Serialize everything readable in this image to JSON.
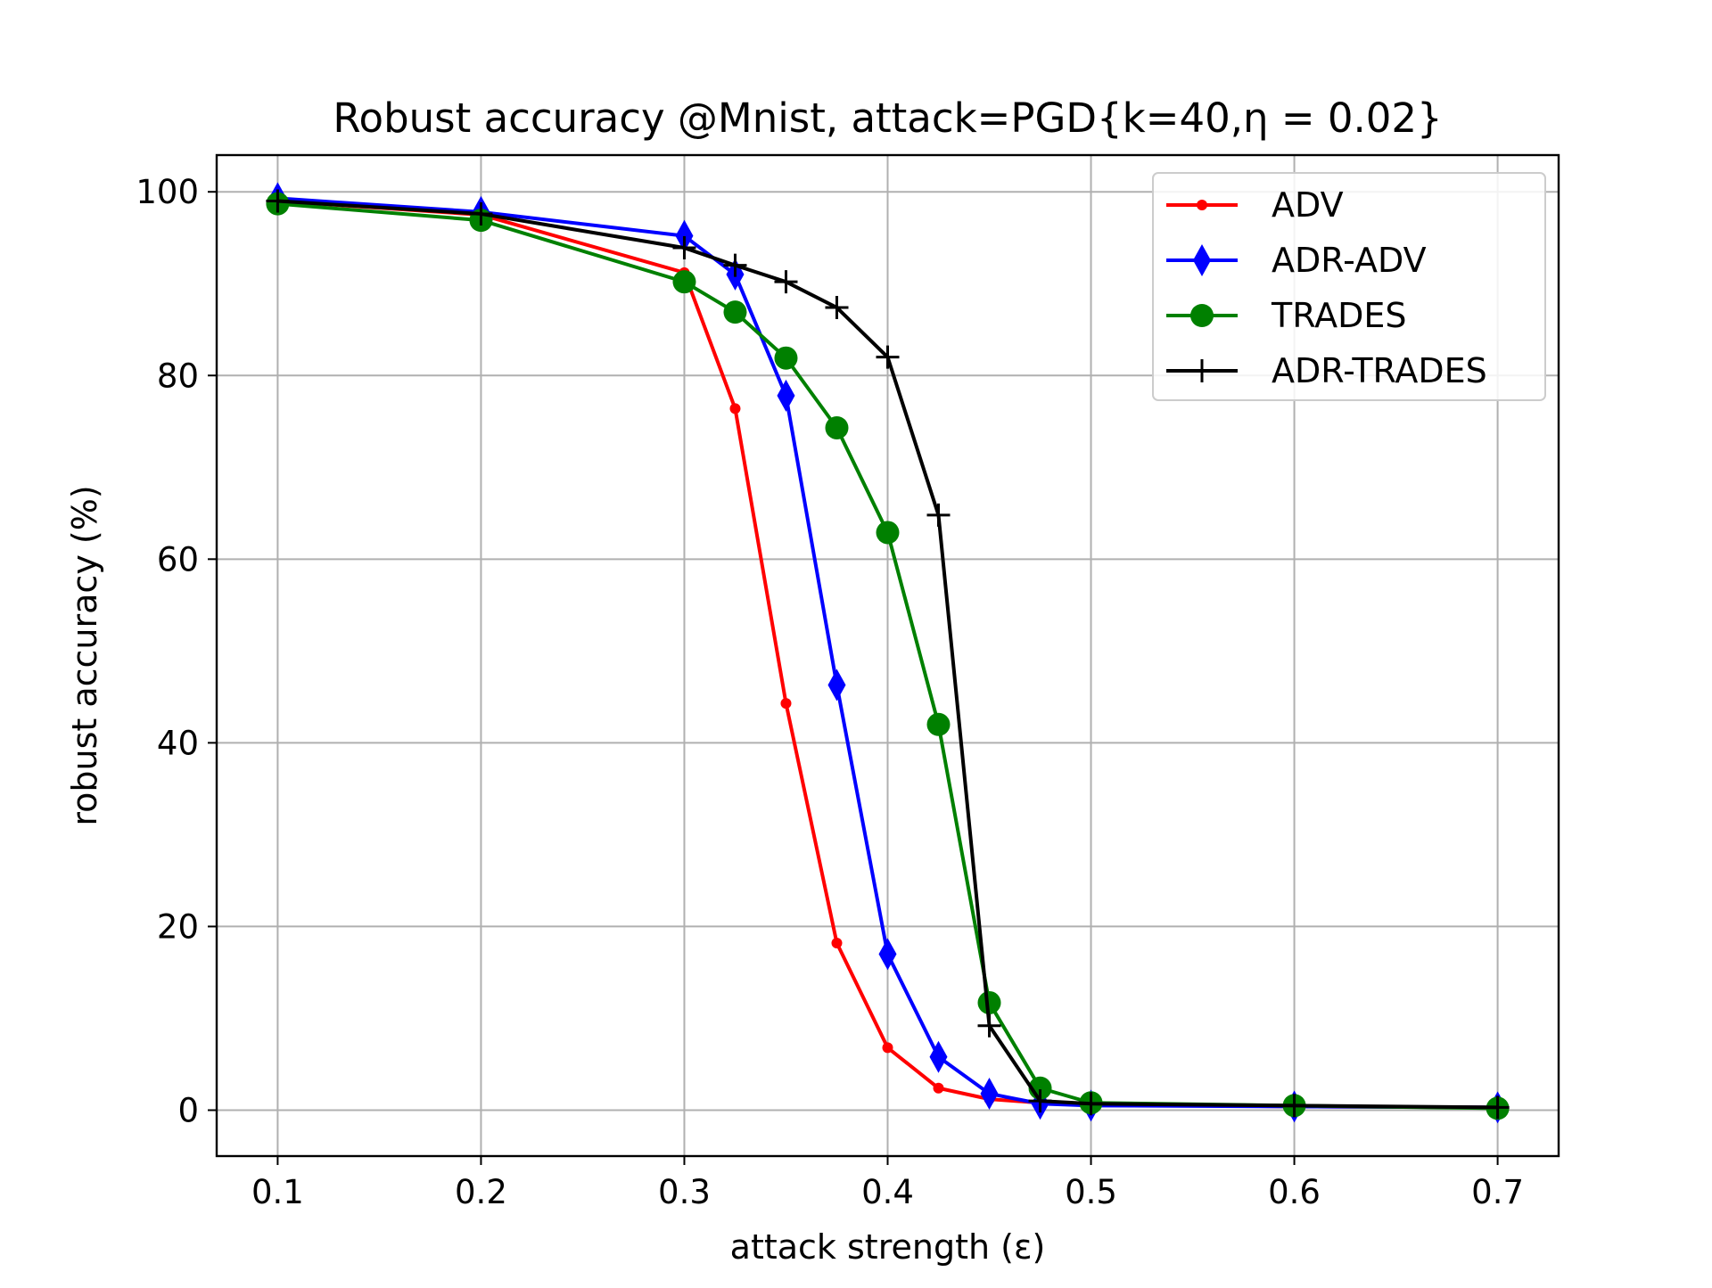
{
  "chart_data": {
    "type": "line",
    "title": "Robust accuracy @Mnist, attack=PGD{k=40,η = 0.02}",
    "xlabel": "attack strength (ε)",
    "ylabel": "robust accuracy (%)",
    "xlim": [
      0.07,
      0.73
    ],
    "ylim": [
      -5,
      104
    ],
    "xticks": [
      0.1,
      0.2,
      0.3,
      0.4,
      0.5,
      0.6,
      0.7
    ],
    "xtick_labels": [
      "0.1",
      "0.2",
      "0.3",
      "0.4",
      "0.5",
      "0.6",
      "0.7"
    ],
    "yticks": [
      0,
      20,
      40,
      60,
      80,
      100
    ],
    "ytick_labels": [
      "0",
      "20",
      "40",
      "60",
      "80",
      "100"
    ],
    "grid": true,
    "legend_position": "top-right",
    "series": [
      {
        "name": "ADV",
        "color": "#ff0000",
        "marker": "dot",
        "x": [
          0.1,
          0.2,
          0.3,
          0.325,
          0.35,
          0.375,
          0.4,
          0.425,
          0.45,
          0.475,
          0.5,
          0.6,
          0.7
        ],
        "y": [
          99.0,
          97.5,
          91.2,
          76.4,
          44.3,
          18.2,
          6.8,
          2.4,
          1.2,
          0.8,
          0.6,
          0.4,
          0.3
        ]
      },
      {
        "name": "ADR-ADV",
        "color": "#0000ff",
        "marker": "thin-diamond",
        "x": [
          0.1,
          0.2,
          0.3,
          0.325,
          0.35,
          0.375,
          0.4,
          0.425,
          0.45,
          0.475,
          0.5,
          0.6,
          0.7
        ],
        "y": [
          99.3,
          97.8,
          95.2,
          91.0,
          77.8,
          46.3,
          17.0,
          5.8,
          1.8,
          0.7,
          0.5,
          0.4,
          0.3
        ]
      },
      {
        "name": "TRADES",
        "color": "#008000",
        "marker": "circle",
        "x": [
          0.1,
          0.2,
          0.3,
          0.325,
          0.35,
          0.375,
          0.4,
          0.425,
          0.45,
          0.475,
          0.5,
          0.6,
          0.7
        ],
        "y": [
          98.7,
          96.9,
          90.2,
          86.9,
          81.9,
          74.3,
          62.9,
          42.0,
          11.7,
          2.4,
          0.8,
          0.5,
          0.2
        ]
      },
      {
        "name": "ADR-TRADES",
        "color": "#000000",
        "marker": "plus",
        "x": [
          0.1,
          0.2,
          0.3,
          0.325,
          0.35,
          0.375,
          0.4,
          0.425,
          0.45,
          0.475,
          0.5,
          0.6,
          0.7
        ],
        "y": [
          99.0,
          97.6,
          93.9,
          92.0,
          90.2,
          87.4,
          82.0,
          64.8,
          9.2,
          1.0,
          0.7,
          0.5,
          0.3
        ]
      }
    ]
  }
}
